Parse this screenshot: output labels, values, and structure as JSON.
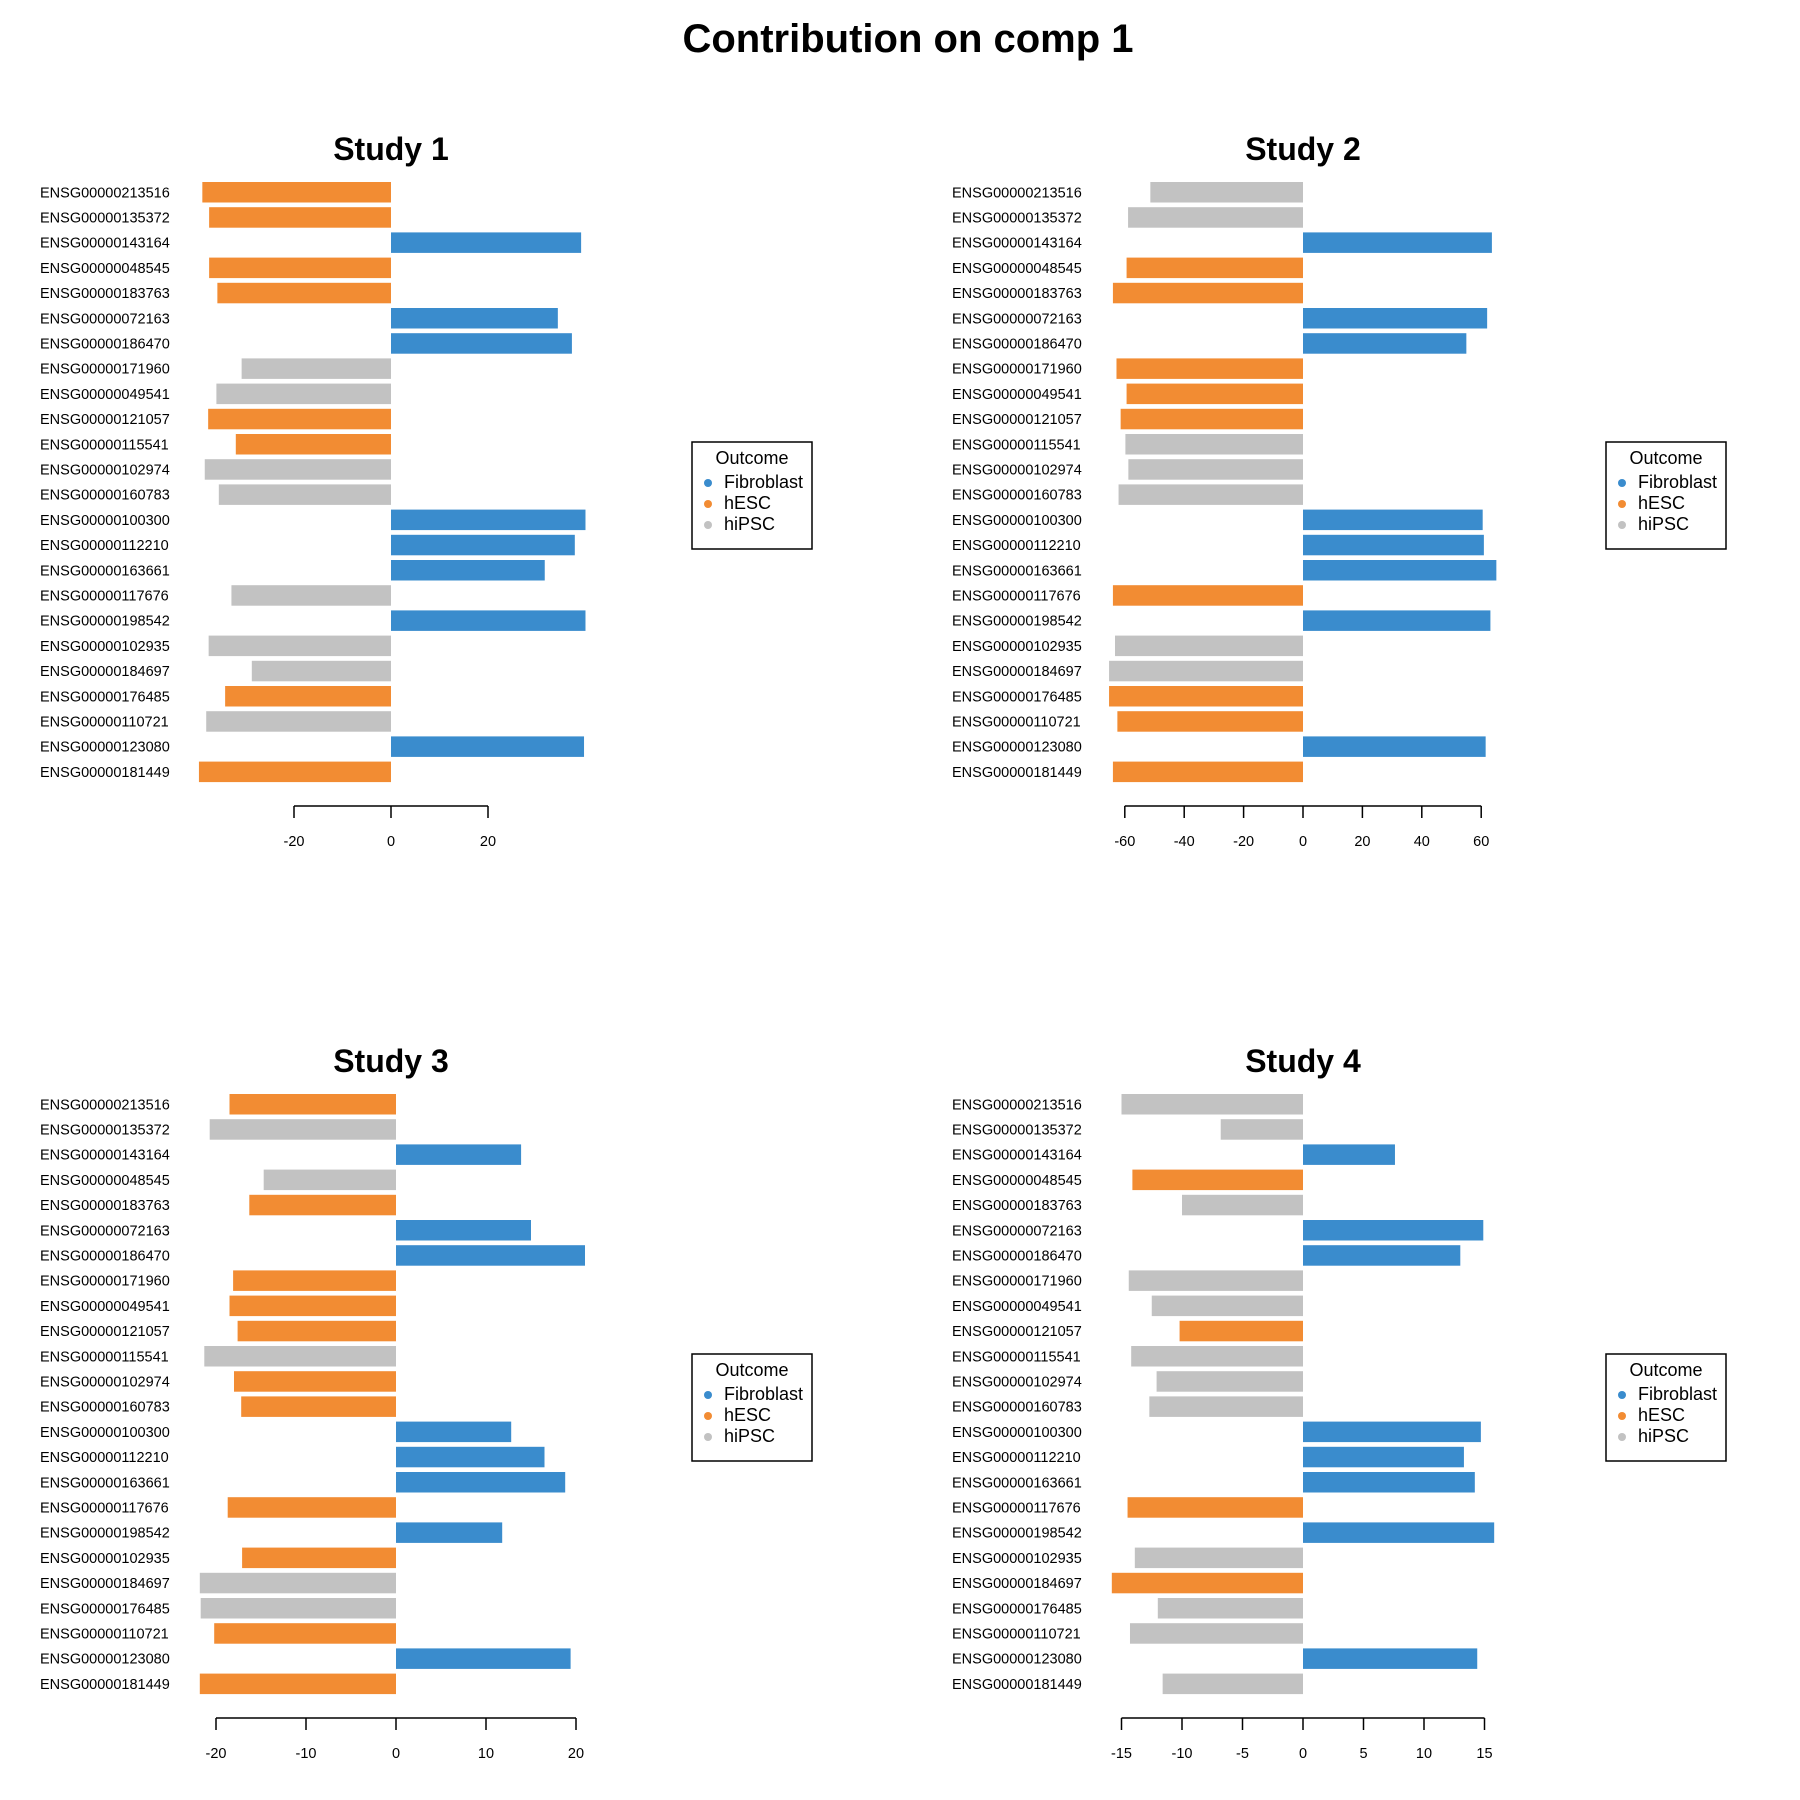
{
  "title": "Contribution on comp 1",
  "colors": {
    "Fibroblast": "#3a8ccd",
    "hESC": "#f28c33",
    "hiPSC": "#c2c2c2"
  },
  "legend": {
    "title": "Outcome",
    "items": [
      "Fibroblast",
      "hESC",
      "hiPSC"
    ]
  },
  "chart_data": [
    {
      "type": "bar",
      "orientation": "horizontal",
      "title": "Study 1",
      "xlim": [
        -42,
        42
      ],
      "xticks": [
        -20,
        0,
        20
      ],
      "categories": [
        "ENSG00000213516",
        "ENSG00000135372",
        "ENSG00000143164",
        "ENSG00000048545",
        "ENSG00000183763",
        "ENSG00000072163",
        "ENSG00000186470",
        "ENSG00000171960",
        "ENSG00000049541",
        "ENSG00000121057",
        "ENSG00000115541",
        "ENSG00000102974",
        "ENSG00000160783",
        "ENSG00000100300",
        "ENSG00000112210",
        "ENSG00000163661",
        "ENSG00000117676",
        "ENSG00000198542",
        "ENSG00000102935",
        "ENSG00000184697",
        "ENSG00000176485",
        "ENSG00000110721",
        "ENSG00000123080",
        "ENSG00000181449"
      ],
      "values": [
        -38.9,
        -37.5,
        39.2,
        -37.5,
        -35.8,
        34.4,
        37.3,
        -30.8,
        -36.0,
        -37.7,
        -32.0,
        -38.4,
        -35.5,
        40.1,
        37.9,
        31.7,
        -32.9,
        40.1,
        -37.6,
        -28.7,
        -34.2,
        -38.1,
        39.8,
        -39.6
      ],
      "groups": [
        "hESC",
        "hESC",
        "Fibroblast",
        "hESC",
        "hESC",
        "Fibroblast",
        "Fibroblast",
        "hiPSC",
        "hiPSC",
        "hESC",
        "hESC",
        "hiPSC",
        "hiPSC",
        "Fibroblast",
        "Fibroblast",
        "Fibroblast",
        "hiPSC",
        "Fibroblast",
        "hiPSC",
        "hiPSC",
        "hESC",
        "hiPSC",
        "Fibroblast",
        "hESC"
      ]
    },
    {
      "type": "bar",
      "orientation": "horizontal",
      "title": "Study 2",
      "xlim": [
        -66,
        66
      ],
      "xticks": [
        -60,
        -40,
        -20,
        0,
        20,
        40,
        60
      ],
      "categories": [
        "ENSG00000213516",
        "ENSG00000135372",
        "ENSG00000143164",
        "ENSG00000048545",
        "ENSG00000183763",
        "ENSG00000072163",
        "ENSG00000186470",
        "ENSG00000171960",
        "ENSG00000049541",
        "ENSG00000121057",
        "ENSG00000115541",
        "ENSG00000102974",
        "ENSG00000160783",
        "ENSG00000100300",
        "ENSG00000112210",
        "ENSG00000163661",
        "ENSG00000117676",
        "ENSG00000198542",
        "ENSG00000102935",
        "ENSG00000184697",
        "ENSG00000176485",
        "ENSG00000110721",
        "ENSG00000123080",
        "ENSG00000181449"
      ],
      "values": [
        -51.4,
        -58.9,
        63.6,
        -59.4,
        -64.0,
        62.0,
        55.0,
        -62.8,
        -59.4,
        -61.4,
        -59.8,
        -58.8,
        -62.1,
        60.5,
        60.9,
        65.1,
        -64.0,
        63.1,
        -63.3,
        -65.3,
        -65.3,
        -62.5,
        61.5,
        -64.0
      ],
      "groups": [
        "hiPSC",
        "hiPSC",
        "Fibroblast",
        "hESC",
        "hESC",
        "Fibroblast",
        "Fibroblast",
        "hESC",
        "hESC",
        "hESC",
        "hiPSC",
        "hiPSC",
        "hiPSC",
        "Fibroblast",
        "Fibroblast",
        "Fibroblast",
        "hESC",
        "Fibroblast",
        "hiPSC",
        "hiPSC",
        "hESC",
        "hESC",
        "Fibroblast",
        "hESC"
      ]
    },
    {
      "type": "bar",
      "orientation": "horizontal",
      "title": "Study 3",
      "xlim": [
        -22,
        22
      ],
      "xticks": [
        -20,
        -10,
        0,
        10,
        20
      ],
      "categories": [
        "ENSG00000213516",
        "ENSG00000135372",
        "ENSG00000143164",
        "ENSG00000048545",
        "ENSG00000183763",
        "ENSG00000072163",
        "ENSG00000186470",
        "ENSG00000171960",
        "ENSG00000049541",
        "ENSG00000121057",
        "ENSG00000115541",
        "ENSG00000102974",
        "ENSG00000160783",
        "ENSG00000100300",
        "ENSG00000112210",
        "ENSG00000163661",
        "ENSG00000117676",
        "ENSG00000198542",
        "ENSG00000102935",
        "ENSG00000184697",
        "ENSG00000176485",
        "ENSG00000110721",
        "ENSG00000123080",
        "ENSG00000181449"
      ],
      "values": [
        -18.5,
        -20.7,
        13.9,
        -14.7,
        -16.3,
        15.0,
        21.0,
        -18.1,
        -18.5,
        -17.6,
        -21.3,
        -18.0,
        -17.2,
        12.8,
        16.5,
        18.8,
        -18.7,
        11.8,
        -17.1,
        -21.8,
        -21.7,
        -20.2,
        19.4,
        -21.8
      ],
      "groups": [
        "hESC",
        "hiPSC",
        "Fibroblast",
        "hiPSC",
        "hESC",
        "Fibroblast",
        "Fibroblast",
        "hESC",
        "hESC",
        "hESC",
        "hiPSC",
        "hESC",
        "hESC",
        "Fibroblast",
        "Fibroblast",
        "Fibroblast",
        "hESC",
        "Fibroblast",
        "hESC",
        "hiPSC",
        "hiPSC",
        "hESC",
        "Fibroblast",
        "hESC"
      ]
    },
    {
      "type": "bar",
      "orientation": "horizontal",
      "title": "Study 4",
      "xlim": [
        -16.5,
        16.5
      ],
      "xticks": [
        -15,
        -10,
        -5,
        0,
        5,
        10,
        15
      ],
      "categories": [
        "ENSG00000213516",
        "ENSG00000135372",
        "ENSG00000143164",
        "ENSG00000048545",
        "ENSG00000183763",
        "ENSG00000072163",
        "ENSG00000186470",
        "ENSG00000171960",
        "ENSG00000049541",
        "ENSG00000121057",
        "ENSG00000115541",
        "ENSG00000102974",
        "ENSG00000160783",
        "ENSG00000100300",
        "ENSG00000112210",
        "ENSG00000163661",
        "ENSG00000117676",
        "ENSG00000198542",
        "ENSG00000102935",
        "ENSG00000184697",
        "ENSG00000176485",
        "ENSG00000110721",
        "ENSG00000123080",
        "ENSG00000181449"
      ],
      "values": [
        -15.0,
        -6.8,
        7.6,
        -14.1,
        -10.0,
        14.9,
        13.0,
        -14.4,
        -12.5,
        -10.2,
        -14.2,
        -12.1,
        -12.7,
        14.7,
        13.3,
        14.2,
        -14.5,
        15.8,
        -13.9,
        -15.8,
        -12.0,
        -14.3,
        14.4,
        -11.6
      ],
      "groups": [
        "hiPSC",
        "hiPSC",
        "Fibroblast",
        "hESC",
        "hiPSC",
        "Fibroblast",
        "Fibroblast",
        "hiPSC",
        "hiPSC",
        "hESC",
        "hiPSC",
        "hiPSC",
        "hiPSC",
        "Fibroblast",
        "Fibroblast",
        "Fibroblast",
        "hESC",
        "Fibroblast",
        "hiPSC",
        "hESC",
        "hiPSC",
        "hiPSC",
        "Fibroblast",
        "hiPSC"
      ]
    }
  ]
}
